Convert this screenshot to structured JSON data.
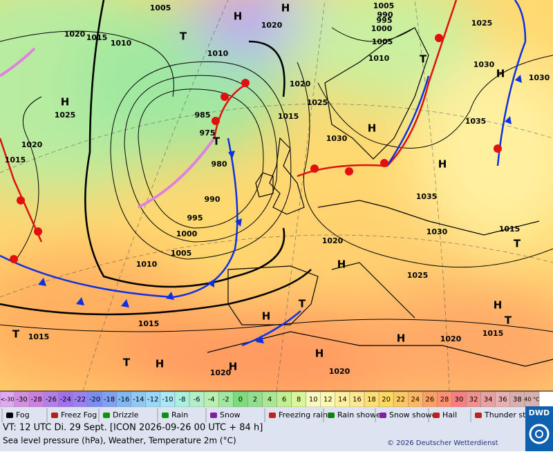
{
  "map": {
    "pressure_labels": [
      1005,
      1020,
      1015,
      1010,
      1020,
      1010,
      1005,
      990,
      995,
      1000,
      1005,
      1010,
      1025,
      1030,
      1030,
      1025,
      1020,
      1015,
      1020,
      1025,
      1015,
      985,
      975,
      980,
      990,
      995,
      1000,
      1005,
      1010,
      1035,
      1030,
      1035,
      1030,
      1015,
      1020,
      1025,
      1015,
      1015,
      1020,
      1015,
      1020,
      1020
    ],
    "high_markers": [
      "H",
      "H",
      "H",
      "H",
      "H",
      "H",
      "H",
      "H",
      "H",
      "H",
      "H",
      "H",
      "H"
    ],
    "low_markers": [
      "T",
      "T",
      "T",
      "T",
      "T",
      "T",
      "T",
      "T"
    ]
  },
  "scale": {
    "low_label": "<-30",
    "values": [
      -30,
      -28,
      -26,
      -24,
      -22,
      -20,
      -18,
      -16,
      -14,
      -12,
      -10,
      -8,
      -6,
      -4,
      -2,
      0,
      2,
      4,
      6,
      8,
      10,
      12,
      14,
      16,
      18,
      20,
      22,
      24,
      26,
      28,
      30,
      32,
      34,
      36,
      38
    ],
    "high_label": "40 °C",
    "colors": [
      "#e0a8f0",
      "#d58fe0",
      "#cc80e0",
      "#b57fe8",
      "#a070f0",
      "#9a80f0",
      "#7b8ef5",
      "#80a0f5",
      "#80b8f5",
      "#90c8f5",
      "#98d8f8",
      "#a8e8f8",
      "#a8f0e0",
      "#b0f0c8",
      "#b8f0b0",
      "#a0e8a0",
      "#7cdc7c",
      "#90e090",
      "#a8e890",
      "#c0f090",
      "#d8f898",
      "#f8f8c0",
      "#fff8b0",
      "#fff0a0",
      "#ffe890",
      "#ffe070",
      "#ffd860",
      "#ffc860",
      "#ffb860",
      "#ffa060",
      "#ff9070",
      "#f88080",
      "#f09090",
      "#e8a0a0",
      "#e8b0b0",
      "#d8b0b0"
    ]
  },
  "legend": [
    "Fog",
    "Freez Fog",
    "Drizzle",
    "Rain",
    "Snow",
    "Freezing rain",
    "Rain shower",
    "Snow shower",
    "Hail",
    "Thunder storm"
  ],
  "footer": {
    "valid_time": "VT: 12 UTC Di.  29 Sept. [ICON 2026-09-26  00 UTC + 84 h]",
    "description": "Sea level pressure (hPa), Weather, Temperature 2m (°C)",
    "copyright": "© 2026 Deutscher Wetterdienst",
    "logo": "DWD"
  }
}
